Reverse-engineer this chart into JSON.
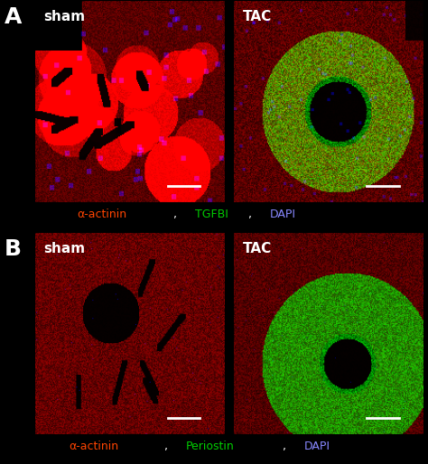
{
  "figure_width": 4.74,
  "figure_height": 5.14,
  "dpi": 100,
  "bg_color": "#000000",
  "panel_A_label": "A",
  "panel_B_label": "B",
  "panel_A_left_title": "sham",
  "panel_A_right_title": "TAC",
  "panel_B_left_title": "sham",
  "panel_B_right_title": "TAC",
  "caption_A_parts": [
    {
      "text": "α-actinin",
      "color": "#ff4400"
    },
    {
      "text": ", ",
      "color": "#ffffff"
    },
    {
      "text": "TGFBI",
      "color": "#00cc00"
    },
    {
      "text": ", ",
      "color": "#ffffff"
    },
    {
      "text": "DAPI",
      "color": "#8888ff"
    }
  ],
  "caption_B_parts": [
    {
      "text": "α-actinin",
      "color": "#ff4400"
    },
    {
      "text": ", ",
      "color": "#ffffff"
    },
    {
      "text": "Periostin",
      "color": "#00cc00"
    },
    {
      "text": ", ",
      "color": "#ffffff"
    },
    {
      "text": "DAPI",
      "color": "#8888ff"
    }
  ],
  "label_color": "#ffffff",
  "label_fontsize": 14,
  "title_fontsize": 11,
  "caption_fontsize": 9,
  "panel_A_bg": "#1a0000",
  "panel_B_bg": "#1a0000"
}
